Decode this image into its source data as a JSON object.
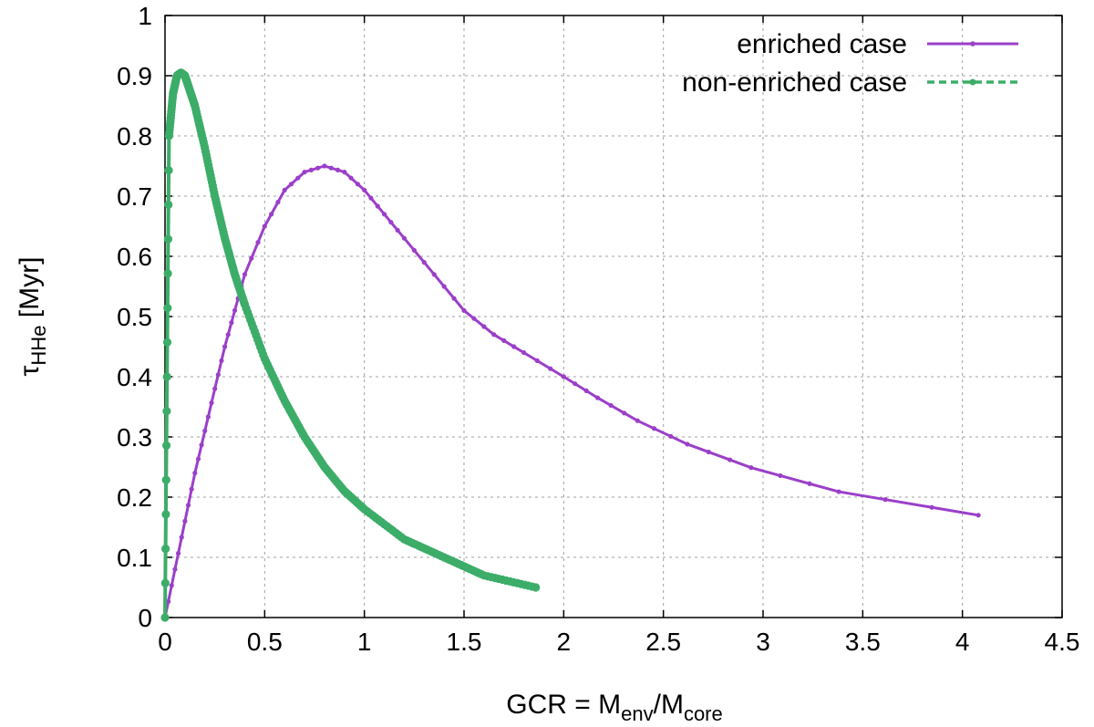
{
  "chart_data": {
    "type": "line",
    "xlim": [
      0,
      4.5
    ],
    "ylim": [
      0,
      1
    ],
    "grid": true,
    "legend_position": "top-right",
    "x_ticks": [
      "0",
      "0.5",
      "1",
      "1.5",
      "2",
      "2.5",
      "3",
      "3.5",
      "4",
      "4.5"
    ],
    "y_ticks": [
      "0",
      "0.1",
      "0.2",
      "0.3",
      "0.4",
      "0.5",
      "0.6",
      "0.7",
      "0.8",
      "0.9",
      "1"
    ],
    "xlabel": {
      "prefix": "GCR = M",
      "sub1": "env",
      "mid": "/M",
      "sub2": "core"
    },
    "ylabel": {
      "base": "τ",
      "sub": "HHe",
      "suffix": " [Myr]"
    },
    "series": [
      {
        "name": "enriched case",
        "color": "#9b3fc9",
        "style": "solid",
        "marker": "dot",
        "x": [
          0.0,
          0.05,
          0.1,
          0.15,
          0.2,
          0.25,
          0.3,
          0.35,
          0.4,
          0.5,
          0.6,
          0.7,
          0.8,
          0.9,
          1.0,
          1.1,
          1.2,
          1.35,
          1.5,
          1.65,
          1.8,
          2.0,
          2.17,
          2.37,
          2.62,
          2.94,
          3.38,
          4.08
        ],
        "y": [
          0.0,
          0.08,
          0.16,
          0.24,
          0.31,
          0.38,
          0.45,
          0.51,
          0.57,
          0.65,
          0.71,
          0.74,
          0.75,
          0.74,
          0.71,
          0.67,
          0.63,
          0.57,
          0.51,
          0.47,
          0.44,
          0.4,
          0.365,
          0.327,
          0.288,
          0.249,
          0.209,
          0.17
        ]
      },
      {
        "name": "non-enriched case",
        "color": "#3cad68",
        "style": "dashed",
        "marker": "star",
        "x": [
          0.0,
          0.02,
          0.04,
          0.06,
          0.08,
          0.1,
          0.12,
          0.15,
          0.2,
          0.25,
          0.3,
          0.35,
          0.4,
          0.5,
          0.6,
          0.7,
          0.8,
          0.9,
          1.0,
          1.2,
          1.4,
          1.6,
          1.86
        ],
        "y": [
          0.0,
          0.8,
          0.87,
          0.9,
          0.905,
          0.9,
          0.88,
          0.85,
          0.78,
          0.7,
          0.63,
          0.57,
          0.52,
          0.43,
          0.36,
          0.3,
          0.25,
          0.21,
          0.18,
          0.13,
          0.1,
          0.07,
          0.05
        ]
      }
    ]
  }
}
